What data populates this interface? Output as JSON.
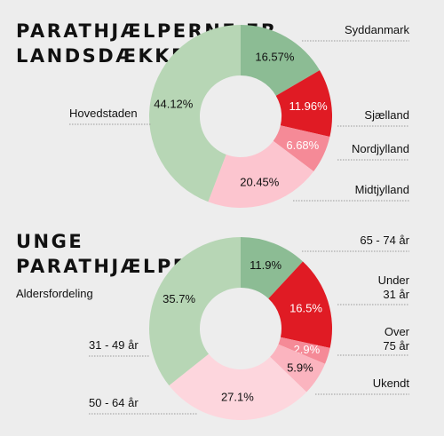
{
  "charts": [
    {
      "title_lines": [
        "PARATHJÆLPERNE ER",
        "LANDSDÆKKENDE"
      ],
      "subtitle": ""
    },
    {
      "title_lines": [
        "UNGE",
        "PARATHJÆLPERE"
      ],
      "subtitle": "Aldersfordeling"
    }
  ],
  "chart_data": [
    {
      "type": "pie",
      "title": "PARATHJÆLPERNE ER LANDSDÆKKENDE",
      "categories": [
        "Syddanmark",
        "Sjælland",
        "Nordjylland",
        "Midtjylland",
        "Hovedstaden"
      ],
      "values": [
        16.57,
        11.96,
        6.68,
        20.45,
        44.12
      ],
      "value_labels": [
        "16.57%",
        "11.96%",
        "6.68%",
        "20.45%",
        "44.12%"
      ],
      "label_lines": [
        [
          "Syddanmark"
        ],
        [
          "Sjælland"
        ],
        [
          "Nordjylland"
        ],
        [
          "Midtjylland"
        ],
        [
          "Hovedstaden"
        ]
      ],
      "colors": [
        "#8cbc94",
        "#e01b24",
        "#f58a97",
        "#fcc5cf",
        "#b7d6b5"
      ],
      "value_label_colors": [
        "#111111",
        "#ffffff",
        "#ffffff",
        "#111111",
        "#111111"
      ],
      "donut": true
    },
    {
      "type": "pie",
      "title": "UNGE PARATHJÆLPERE",
      "subtitle": "Aldersfordeling",
      "categories": [
        "65 - 74 år",
        "Under 31 år",
        "Over 75 år",
        "Ukendt",
        "50 - 64 år",
        "31 - 49 år"
      ],
      "values": [
        11.9,
        16.5,
        2.9,
        5.9,
        27.1,
        35.7
      ],
      "value_labels": [
        "11.9%",
        "16.5%",
        "2.9%",
        "5.9%",
        "27.1%",
        "35.7%"
      ],
      "label_lines": [
        [
          "65 - 74 år"
        ],
        [
          "Under",
          "31 år"
        ],
        [
          "Over",
          "75 år"
        ],
        [
          "Ukendt"
        ],
        [
          "50 - 64 år"
        ],
        [
          "31 - 49 år"
        ]
      ],
      "colors": [
        "#8cbc94",
        "#e01b24",
        "#f58a97",
        "#fbb4bf",
        "#fdd6dd",
        "#b7d6b5"
      ],
      "value_label_colors": [
        "#111111",
        "#ffffff",
        "#ffffff",
        "#111111",
        "#111111",
        "#111111"
      ],
      "donut": true
    }
  ]
}
